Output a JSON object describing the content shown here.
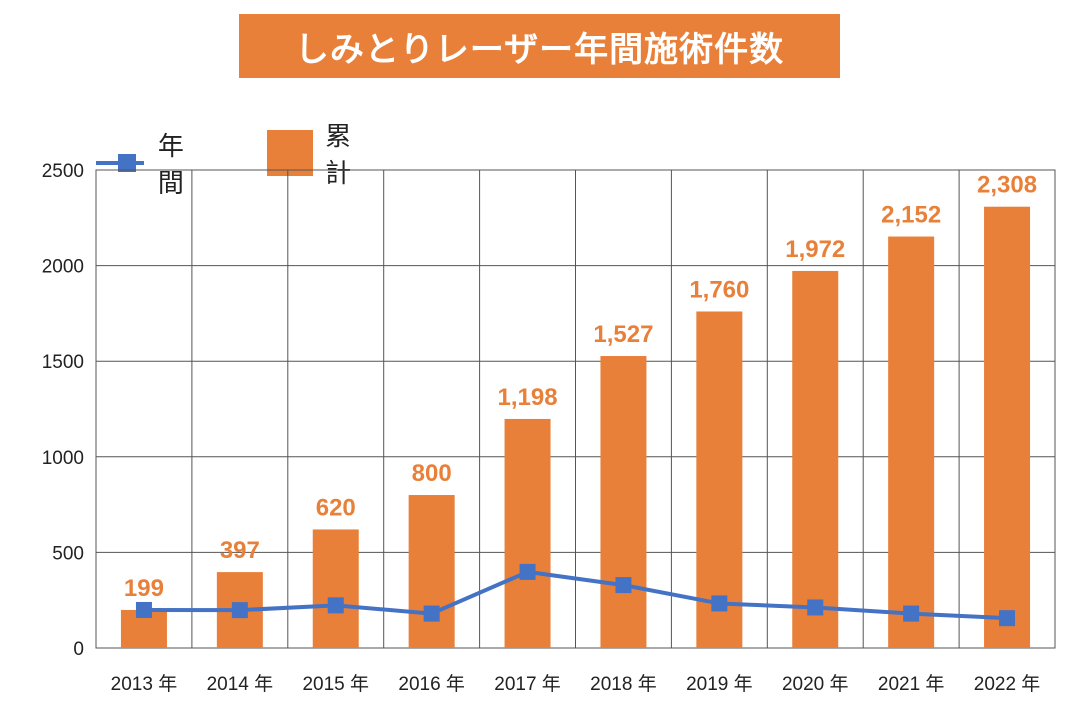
{
  "chart_data": {
    "type": "bar",
    "title": "しみとりレーザー年間施術件数",
    "categories": [
      "2013 年",
      "2014 年",
      "2015 年",
      "2016 年",
      "2017 年",
      "2018 年",
      "2019 年",
      "2020 年",
      "2021 年",
      "2022 年"
    ],
    "series": [
      {
        "name": "累計",
        "type": "bar",
        "color": "#e8803a",
        "values": [
          199,
          397,
          620,
          800,
          1198,
          1527,
          1760,
          1972,
          2152,
          2308
        ],
        "labels": [
          "199",
          "397",
          "620",
          "800",
          "1,198",
          "1,527",
          "1,760",
          "1,972",
          "2,152",
          "2,308"
        ]
      },
      {
        "name": "年間",
        "type": "line",
        "color": "#4472c4",
        "values": [
          199,
          198,
          223,
          180,
          398,
          329,
          233,
          212,
          180,
          156
        ]
      }
    ],
    "yticks": [
      "0",
      "500",
      "1000",
      "1500",
      "2000",
      "2500"
    ],
    "ylim": [
      0,
      2500
    ],
    "grid": true,
    "legend_position": "top-left"
  }
}
